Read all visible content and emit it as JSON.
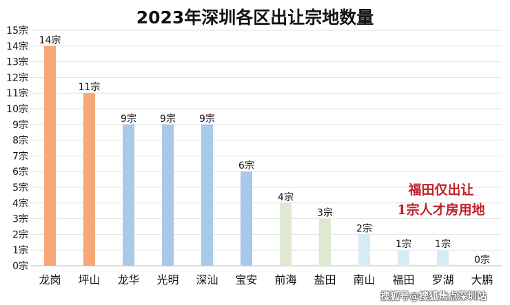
{
  "title": "2023年深圳各区出让宗地数量",
  "annotation": {
    "line1": "福田仅出让",
    "line2": "1宗人才房用地"
  },
  "watermark": "搜狐号@搜狐焦点深圳站",
  "chart_data": {
    "type": "bar",
    "title": "2023年深圳各区出让宗地数量",
    "categories": [
      "龙岗",
      "坪山",
      "龙华",
      "光明",
      "深汕",
      "宝安",
      "前海",
      "盐田",
      "南山",
      "福田",
      "罗湖",
      "大鹏"
    ],
    "values": [
      14,
      11,
      9,
      9,
      9,
      6,
      4,
      3,
      2,
      1,
      1,
      0
    ],
    "data_labels": [
      "14宗",
      "11宗",
      "9宗",
      "9宗",
      "9宗",
      "6宗",
      "4宗",
      "3宗",
      "2宗",
      "1宗",
      "1宗",
      "0宗"
    ],
    "colors": [
      "#f6a878",
      "#f6a878",
      "#aac8ea",
      "#aac8ea",
      "#aac8ea",
      "#aac8ea",
      "#dfe8d3",
      "#dfe8d3",
      "#d7ecf6",
      "#d7ecf6",
      "#d7ecf6",
      "#d7ecf6"
    ],
    "ylim": [
      0,
      15
    ],
    "yticks": [
      "0宗",
      "1宗",
      "2宗",
      "3宗",
      "4宗",
      "5宗",
      "6宗",
      "7宗",
      "8宗",
      "9宗",
      "10宗",
      "11宗",
      "12宗",
      "13宗",
      "14宗",
      "15宗"
    ],
    "grid": true,
    "legend": "none"
  }
}
